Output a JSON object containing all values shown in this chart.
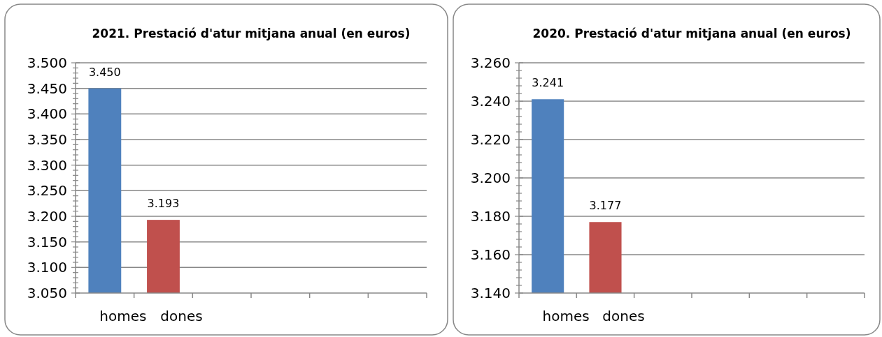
{
  "chart_data": [
    {
      "type": "bar",
      "title": "2021. Prestació d'atur mitjana anual (en euros)",
      "categories": [
        "homes",
        "dones",
        null,
        null,
        null,
        null
      ],
      "values": [
        3450,
        3193,
        null,
        null,
        null,
        null
      ],
      "colors": [
        "#4f81bd",
        "#c0504d",
        null,
        null,
        null,
        null
      ],
      "value_labels": [
        "3.450",
        "3.193",
        null,
        null,
        null,
        null
      ],
      "ylim": [
        3050,
        3500
      ],
      "grid": "y",
      "yticks": [
        {
          "value": 3050,
          "label": "3.050"
        },
        {
          "value": 3060,
          "label": null
        },
        {
          "value": 3070,
          "label": null
        },
        {
          "value": 3080,
          "label": null
        },
        {
          "value": 3090,
          "label": null
        },
        {
          "value": 3100,
          "label": "3.100"
        },
        {
          "value": 3110,
          "label": null
        },
        {
          "value": 3120,
          "label": null
        },
        {
          "value": 3130,
          "label": null
        },
        {
          "value": 3140,
          "label": null
        },
        {
          "value": 3150,
          "label": "3.150"
        },
        {
          "value": 3160,
          "label": null
        },
        {
          "value": 3170,
          "label": null
        },
        {
          "value": 3180,
          "label": null
        },
        {
          "value": 3190,
          "label": null
        },
        {
          "value": 3200,
          "label": "3.200"
        },
        {
          "value": 3210,
          "label": null
        },
        {
          "value": 3220,
          "label": null
        },
        {
          "value": 3230,
          "label": null
        },
        {
          "value": 3240,
          "label": null
        },
        {
          "value": 3250,
          "label": "3.250"
        },
        {
          "value": 3260,
          "label": null
        },
        {
          "value": 3270,
          "label": null
        },
        {
          "value": 3280,
          "label": null
        },
        {
          "value": 3290,
          "label": null
        },
        {
          "value": 3300,
          "label": "3.300"
        },
        {
          "value": 3310,
          "label": null
        },
        {
          "value": 3320,
          "label": null
        },
        {
          "value": 3330,
          "label": null
        },
        {
          "value": 3340,
          "label": null
        },
        {
          "value": 3350,
          "label": "3.350"
        },
        {
          "value": 3360,
          "label": null
        },
        {
          "value": 3370,
          "label": null
        },
        {
          "value": 3380,
          "label": null
        },
        {
          "value": 3390,
          "label": null
        },
        {
          "value": 3400,
          "label": "3.400"
        },
        {
          "value": 3410,
          "label": null
        },
        {
          "value": 3420,
          "label": null
        },
        {
          "value": 3430,
          "label": null
        },
        {
          "value": 3440,
          "label": null
        },
        {
          "value": 3450,
          "label": "3.450"
        },
        {
          "value": 3460,
          "label": null
        },
        {
          "value": 3470,
          "label": null
        },
        {
          "value": 3480,
          "label": null
        },
        {
          "value": 3490,
          "label": null
        },
        {
          "value": 3500,
          "label": "3.500"
        }
      ]
    },
    {
      "type": "bar",
      "title": "2020. Prestació d'atur mitjana anual (en euros)",
      "categories": [
        "homes",
        "dones",
        null,
        null,
        null,
        null
      ],
      "values": [
        3241,
        3177,
        null,
        null,
        null,
        null
      ],
      "colors": [
        "#4f81bd",
        "#c0504d",
        null,
        null,
        null,
        null
      ],
      "value_labels": [
        "3.241",
        "3.177",
        null,
        null,
        null,
        null
      ],
      "ylim": [
        3140,
        3260
      ],
      "grid": "y",
      "yticks": [
        {
          "value": 3140,
          "label": "3.140"
        },
        {
          "value": 3144,
          "label": null
        },
        {
          "value": 3148,
          "label": null
        },
        {
          "value": 3152,
          "label": null
        },
        {
          "value": 3156,
          "label": null
        },
        {
          "value": 3160,
          "label": "3.160"
        },
        {
          "value": 3164,
          "label": null
        },
        {
          "value": 3168,
          "label": null
        },
        {
          "value": 3172,
          "label": null
        },
        {
          "value": 3176,
          "label": null
        },
        {
          "value": 3180,
          "label": "3.180"
        },
        {
          "value": 3184,
          "label": null
        },
        {
          "value": 3188,
          "label": null
        },
        {
          "value": 3192,
          "label": null
        },
        {
          "value": 3196,
          "label": null
        },
        {
          "value": 3200,
          "label": "3.200"
        },
        {
          "value": 3204,
          "label": null
        },
        {
          "value": 3208,
          "label": null
        },
        {
          "value": 3212,
          "label": null
        },
        {
          "value": 3216,
          "label": null
        },
        {
          "value": 3220,
          "label": "3.220"
        },
        {
          "value": 3224,
          "label": null
        },
        {
          "value": 3228,
          "label": null
        },
        {
          "value": 3232,
          "label": null
        },
        {
          "value": 3236,
          "label": null
        },
        {
          "value": 3240,
          "label": "3.240"
        },
        {
          "value": 3244,
          "label": null
        },
        {
          "value": 3248,
          "label": null
        },
        {
          "value": 3252,
          "label": null
        },
        {
          "value": 3256,
          "label": null
        },
        {
          "value": 3260,
          "label": "3.260"
        }
      ]
    }
  ]
}
